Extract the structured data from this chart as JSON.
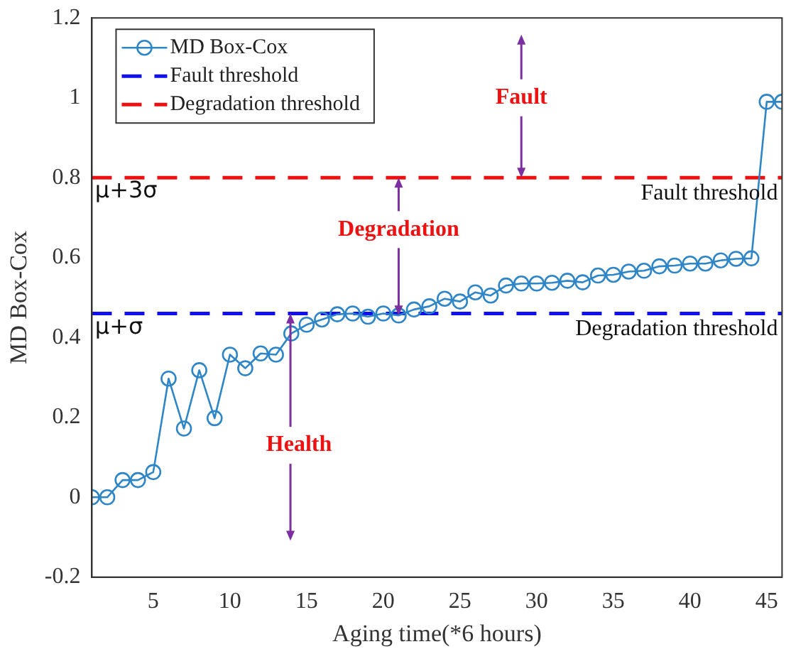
{
  "chart_data": {
    "type": "line",
    "xlabel": "Aging time(*6 hours)",
    "ylabel": "MD Box-Cox",
    "x": [
      1,
      2,
      3,
      4,
      5,
      6,
      7,
      8,
      9,
      10,
      11,
      12,
      13,
      14,
      15,
      16,
      17,
      18,
      19,
      20,
      21,
      22,
      23,
      24,
      25,
      26,
      27,
      28,
      29,
      30,
      31,
      32,
      33,
      34,
      35,
      36,
      37,
      38,
      39,
      40,
      41,
      42,
      43,
      44,
      45,
      46
    ],
    "series": [
      {
        "name": "MD Box-Cox",
        "color": "#2e86c8",
        "marker": "circle",
        "line_style": "solid",
        "values": [
          0,
          0,
          0.043,
          0.043,
          0.063,
          0.297,
          0.172,
          0.318,
          0.198,
          0.357,
          0.323,
          0.36,
          0.357,
          0.41,
          0.432,
          0.445,
          0.458,
          0.46,
          0.452,
          0.46,
          0.455,
          0.47,
          0.478,
          0.497,
          0.49,
          0.513,
          0.505,
          0.53,
          0.535,
          0.535,
          0.537,
          0.542,
          0.538,
          0.555,
          0.557,
          0.565,
          0.567,
          0.578,
          0.58,
          0.585,
          0.585,
          0.593,
          0.597,
          0.598,
          0.99,
          0.99
        ]
      },
      {
        "name": "Fault threshold",
        "color": "#1010ee",
        "marker": "none",
        "line_style": "dashed",
        "values": [
          0.46,
          0.46,
          0.46,
          0.46,
          0.46,
          0.46,
          0.46,
          0.46,
          0.46,
          0.46,
          0.46,
          0.46,
          0.46,
          0.46,
          0.46,
          0.46,
          0.46,
          0.46,
          0.46,
          0.46,
          0.46,
          0.46,
          0.46,
          0.46,
          0.46,
          0.46,
          0.46,
          0.46,
          0.46,
          0.46,
          0.46,
          0.46,
          0.46,
          0.46,
          0.46,
          0.46,
          0.46,
          0.46,
          0.46,
          0.46,
          0.46,
          0.46,
          0.46,
          0.46,
          0.46,
          0.46
        ]
      },
      {
        "name": "Degradation threshold",
        "color": "#ee1010",
        "marker": "none",
        "line_style": "dashed",
        "values": [
          0.8,
          0.8,
          0.8,
          0.8,
          0.8,
          0.8,
          0.8,
          0.8,
          0.8,
          0.8,
          0.8,
          0.8,
          0.8,
          0.8,
          0.8,
          0.8,
          0.8,
          0.8,
          0.8,
          0.8,
          0.8,
          0.8,
          0.8,
          0.8,
          0.8,
          0.8,
          0.8,
          0.8,
          0.8,
          0.8,
          0.8,
          0.8,
          0.8,
          0.8,
          0.8,
          0.8,
          0.8,
          0.8,
          0.8,
          0.8,
          0.8,
          0.8,
          0.8,
          0.8,
          0.8,
          0.8
        ]
      }
    ],
    "xlim": [
      1,
      46
    ],
    "xticks": [
      5,
      10,
      15,
      20,
      25,
      30,
      35,
      40,
      45
    ],
    "ylim": [
      -0.2,
      1.2
    ],
    "yticks": [
      -0.2,
      0,
      0.2,
      0.4,
      0.6,
      0.8,
      1,
      1.2
    ],
    "grid": false,
    "legend": "top left",
    "annotations": [
      "Fault",
      {
        "text": "Degradation",
        "x": 21,
        "y": 0.455
      },
      "Health",
      "μ+3σ",
      "μ+σ",
      "Fault threshold",
      "Degradation threshold"
    ]
  }
}
